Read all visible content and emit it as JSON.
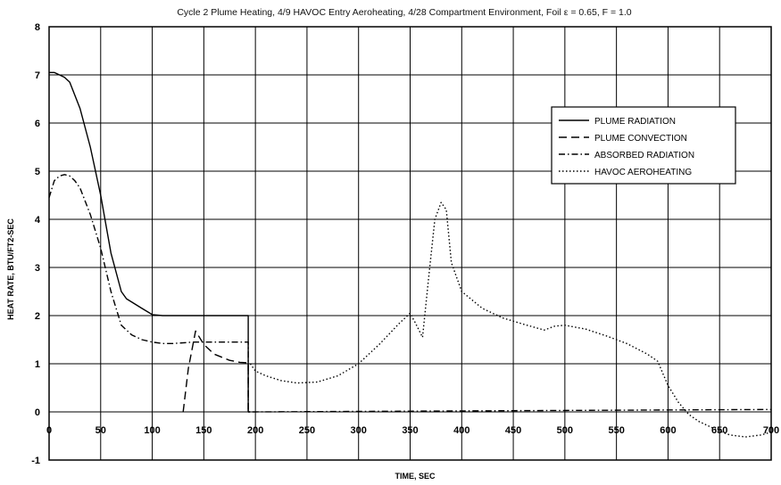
{
  "chart_data": {
    "type": "line",
    "title": "Cycle 2 Plume Heating, 4/9 HAVOC Entry Aeroheating, 4/28 Compartment Environment, Foil ε = 0.65, F = 1.0",
    "xlabel": "TIME, SEC",
    "ylabel": "HEAT RATE, BTU/FT2-SEC",
    "xlim": [
      0,
      700
    ],
    "ylim": [
      -1,
      8
    ],
    "x_ticks": [
      "0",
      "50",
      "100",
      "150",
      "200",
      "250",
      "300",
      "350",
      "400",
      "450",
      "500",
      "550",
      "600",
      "650",
      "700"
    ],
    "y_ticks": [
      "-1",
      "0",
      "1",
      "2",
      "3",
      "4",
      "5",
      "6",
      "7",
      "8"
    ],
    "grid": true,
    "legend_position": "top-right",
    "series": [
      {
        "name": "PLUME RADIATION",
        "style": "solid",
        "color": "#000000",
        "x": [
          0,
          5,
          10,
          15,
          20,
          30,
          40,
          50,
          60,
          70,
          75,
          90,
          100,
          110,
          130,
          140,
          150,
          160,
          180,
          193,
          193,
          194,
          195
        ],
        "y": [
          7.05,
          7.05,
          7.0,
          6.95,
          6.85,
          6.3,
          5.5,
          4.5,
          3.3,
          2.5,
          2.35,
          2.15,
          2.02,
          2.0,
          2.0,
          2.0,
          2.0,
          2.0,
          2.0,
          2.0,
          0.0,
          0.0,
          0.0
        ]
      },
      {
        "name": "PLUME CONVECTION",
        "style": "dashed",
        "color": "#000000",
        "x": [
          130,
          135,
          142,
          150,
          160,
          175,
          185,
          193,
          193
        ],
        "y": [
          0.0,
          0.9,
          1.68,
          1.4,
          1.2,
          1.07,
          1.03,
          1.02,
          0.0
        ]
      },
      {
        "name": "ABSORBED RADIATION",
        "style": "dashdot",
        "color": "#000000",
        "x": [
          0,
          5,
          10,
          15,
          20,
          25,
          30,
          40,
          50,
          60,
          70,
          80,
          90,
          100,
          110,
          120,
          140,
          160,
          193,
          193,
          200,
          700
        ],
        "y": [
          4.45,
          4.8,
          4.9,
          4.93,
          4.9,
          4.8,
          4.65,
          4.1,
          3.4,
          2.5,
          1.8,
          1.6,
          1.5,
          1.45,
          1.42,
          1.42,
          1.45,
          1.45,
          1.45,
          0.0,
          0.0,
          0.05
        ]
      },
      {
        "name": "HAVOC AEROHEATING",
        "style": "dotted",
        "color": "#000000",
        "x": [
          195,
          200,
          210,
          225,
          240,
          260,
          280,
          300,
          320,
          340,
          350,
          355,
          362,
          368,
          374,
          380,
          385,
          390,
          400,
          420,
          440,
          460,
          480,
          490,
          500,
          520,
          540,
          560,
          580,
          590,
          595,
          600,
          610,
          620,
          630,
          640,
          650,
          660,
          675,
          690,
          700
        ],
        "y": [
          1.0,
          0.85,
          0.75,
          0.65,
          0.6,
          0.62,
          0.75,
          1.0,
          1.4,
          1.85,
          2.05,
          1.85,
          1.55,
          2.8,
          4.0,
          4.35,
          4.2,
          3.1,
          2.5,
          2.15,
          1.95,
          1.82,
          1.7,
          1.78,
          1.8,
          1.72,
          1.58,
          1.42,
          1.2,
          1.05,
          0.8,
          0.55,
          0.2,
          -0.05,
          -0.2,
          -0.3,
          -0.4,
          -0.48,
          -0.52,
          -0.48,
          -0.42
        ]
      }
    ]
  }
}
